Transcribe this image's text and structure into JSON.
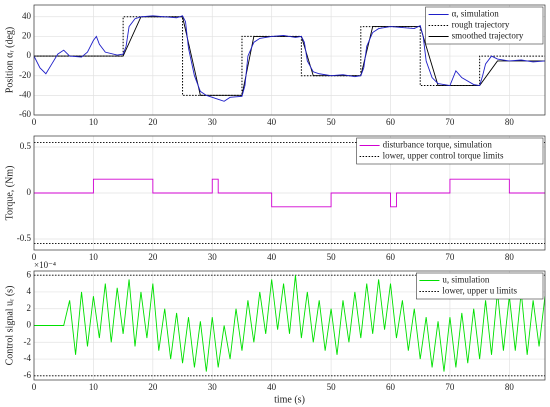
{
  "chart_data": [
    {
      "type": "line",
      "ylabel": "Position αᵣ (deg)",
      "xlim": [
        0,
        86
      ],
      "xticks": [
        0,
        10,
        20,
        30,
        40,
        50,
        60,
        70,
        80
      ],
      "ylim": [
        -60,
        52
      ],
      "yticks": [
        -60,
        -40,
        -20,
        0,
        20,
        40
      ],
      "grid": true,
      "legend": "top-right",
      "series": [
        {
          "name": "α, simulation",
          "color": "#1f1fc8",
          "style": "solid",
          "x": [
            0,
            1,
            2,
            3,
            4,
            5,
            6,
            8,
            9,
            10,
            10.5,
            11,
            12,
            14,
            15,
            15.5,
            16,
            17,
            18,
            20,
            22,
            24,
            25,
            25.5,
            26,
            27,
            28,
            29,
            30,
            31,
            32,
            33,
            35,
            35.5,
            36,
            37,
            38,
            40,
            42,
            44,
            45,
            45.5,
            46,
            47,
            48,
            50,
            52,
            54,
            55,
            55.5,
            56,
            57,
            58,
            60,
            62,
            64,
            65,
            65.5,
            66,
            67,
            68,
            70,
            71,
            72,
            74,
            75,
            75.5,
            76,
            77,
            78,
            80,
            82,
            84,
            86
          ],
          "values": [
            0,
            -12,
            -18,
            -8,
            2,
            6,
            0,
            -1,
            4,
            16,
            20,
            12,
            4,
            1,
            2,
            10,
            30,
            38,
            40,
            41,
            40,
            39,
            41,
            35,
            8,
            -20,
            -36,
            -40,
            -42,
            -44,
            -46,
            -42,
            -41,
            -30,
            0,
            14,
            18,
            20,
            21,
            19,
            20,
            14,
            -5,
            -16,
            -18,
            -20,
            -19,
            -21,
            -20,
            -12,
            10,
            24,
            28,
            30,
            29,
            28,
            31,
            20,
            -5,
            -22,
            -28,
            -30,
            -15,
            -22,
            -29,
            -30,
            -20,
            -8,
            0,
            -3,
            -5,
            -4,
            -6,
            -5
          ]
        },
        {
          "name": "rough trajectory",
          "color": "#000000",
          "style": "dotted",
          "x": [
            0,
            15,
            15,
            25,
            25,
            35,
            35,
            45,
            45,
            55,
            55,
            65,
            65,
            75,
            75,
            86
          ],
          "values": [
            0,
            0,
            40,
            40,
            -40,
            -40,
            20,
            20,
            -20,
            -20,
            30,
            30,
            -30,
            -30,
            0,
            0
          ]
        },
        {
          "name": "smoothed trajectory",
          "color": "#000000",
          "style": "solid",
          "x": [
            0,
            15,
            18,
            25,
            28,
            35,
            37,
            45,
            47,
            55,
            57,
            65,
            68,
            75,
            78,
            86
          ],
          "values": [
            0,
            0,
            40,
            40,
            -40,
            -40,
            20,
            20,
            -20,
            -20,
            30,
            30,
            -30,
            -30,
            -5,
            -5
          ]
        }
      ]
    },
    {
      "type": "line",
      "ylabel": "Torque, (Nm)",
      "xlim": [
        0,
        86
      ],
      "xticks": [
        0,
        10,
        20,
        30,
        40,
        50,
        60,
        70,
        80
      ],
      "ylim": [
        -0.62,
        0.62
      ],
      "yticks": [
        -0.5,
        0,
        0.5
      ],
      "grid": true,
      "legend": "top-right",
      "series": [
        {
          "name": "disturbance torque, simulation",
          "color": "#d100d1",
          "style": "solid",
          "x": [
            0,
            10,
            10,
            20,
            20,
            30,
            30,
            31,
            31,
            40,
            40,
            50,
            50,
            60,
            60,
            61,
            61,
            70,
            70,
            80,
            80,
            86
          ],
          "values": [
            0,
            0,
            0.15,
            0.15,
            0,
            0,
            0.15,
            0.15,
            0,
            0,
            -0.15,
            -0.15,
            0,
            0,
            -0.15,
            -0.15,
            0,
            0,
            0.15,
            0.15,
            0,
            0
          ]
        }
      ],
      "limits": {
        "name": "lower, upper control torque limits",
        "color": "#000000",
        "values": [
          -0.55,
          0.55
        ]
      }
    },
    {
      "type": "line",
      "ylabel": "Control signal uᵣ (s)",
      "xlabel": "time (s)",
      "y_exponent": "×10⁻⁴",
      "xlim": [
        0,
        86
      ],
      "xticks": [
        0,
        10,
        20,
        30,
        40,
        50,
        60,
        70,
        80
      ],
      "ylim": [
        -6.5,
        6.5
      ],
      "yticks": [
        -6,
        -4,
        -2,
        0,
        2,
        4,
        6
      ],
      "grid": true,
      "legend": "top-right",
      "series": [
        {
          "name": "u, simulation",
          "color": "#00e000",
          "style": "solid",
          "x": [
            0,
            5,
            6,
            7,
            8,
            9,
            10,
            11,
            12,
            13,
            14,
            15,
            16,
            17,
            18,
            19,
            20,
            21,
            22,
            23,
            24,
            25,
            26,
            27,
            28,
            29,
            30,
            31,
            32,
            33,
            34,
            35,
            36,
            37,
            38,
            39,
            40,
            41,
            42,
            43,
            44,
            45,
            46,
            47,
            48,
            49,
            50,
            51,
            52,
            53,
            54,
            55,
            56,
            57,
            58,
            59,
            60,
            61,
            62,
            63,
            64,
            65,
            66,
            67,
            68,
            69,
            70,
            71,
            72,
            73,
            74,
            75,
            76,
            77,
            78,
            79,
            80,
            81,
            82,
            83,
            84,
            85,
            86
          ],
          "values": [
            0,
            0,
            3,
            -3.5,
            4,
            -2.5,
            3.5,
            -1.5,
            5,
            -2,
            4.5,
            -1,
            5.5,
            -2.5,
            4,
            -1.5,
            5,
            -3,
            2,
            -4,
            1.5,
            -4.5,
            1,
            -5,
            0.5,
            -5.5,
            1,
            -5,
            0,
            -4,
            2,
            -3,
            3,
            -2,
            4,
            -1,
            5.5,
            -0.5,
            5,
            -1,
            6,
            -1.5,
            4,
            -2,
            3,
            -3,
            2,
            -3.5,
            3,
            -2,
            4,
            -1.5,
            5,
            -1,
            5.5,
            -0.5,
            5,
            -1.5,
            3,
            -3,
            2,
            -4,
            1,
            -5,
            0.5,
            -5.5,
            1,
            -5,
            1.5,
            -4.5,
            2,
            -4,
            3,
            -3.5,
            4,
            -3,
            3.5,
            -3,
            4,
            -3.5,
            3,
            -2.5,
            3.5
          ]
        }
      ],
      "limits": {
        "name": "lower, upper u limits",
        "color": "#000000",
        "values": [
          -6,
          6
        ]
      }
    }
  ]
}
